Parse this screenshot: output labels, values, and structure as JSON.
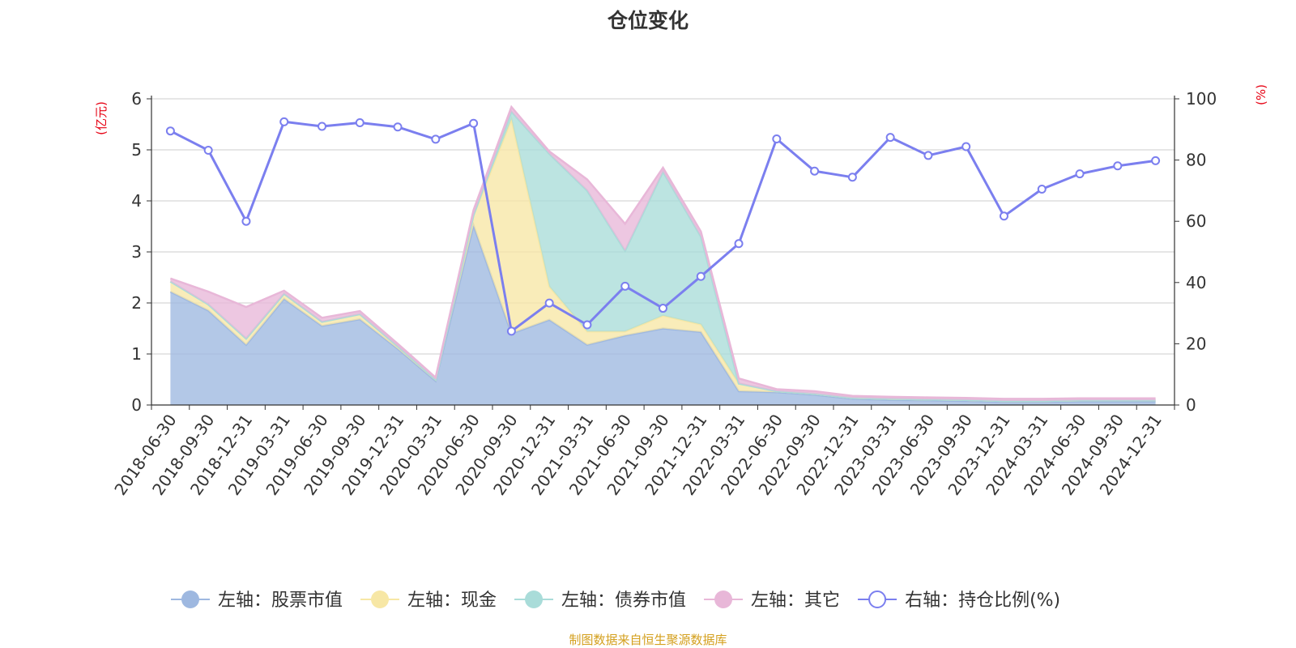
{
  "chart_data": {
    "type": "area",
    "title": "仓位变化",
    "left_axis_unit": "(亿元)",
    "right_axis_unit": "(%)",
    "left_ylim": [
      0,
      6
    ],
    "left_ticks": [
      "0",
      "1",
      "2",
      "3",
      "4",
      "5",
      "6"
    ],
    "right_ylim": [
      0,
      100
    ],
    "right_ticks": [
      "0",
      "20",
      "40",
      "60",
      "80",
      "100"
    ],
    "grid": true,
    "legend_position": "bottom-center",
    "categories": [
      "2018-06-30",
      "2018-09-30",
      "2018-12-31",
      "2019-03-31",
      "2019-06-30",
      "2019-09-30",
      "2019-12-31",
      "2020-03-31",
      "2020-06-30",
      "2020-09-30",
      "2020-12-31",
      "2021-03-31",
      "2021-06-30",
      "2021-09-30",
      "2021-12-31",
      "2022-03-31",
      "2022-06-30",
      "2022-09-30",
      "2022-12-31",
      "2023-03-31",
      "2023-06-30",
      "2023-09-30",
      "2023-12-31",
      "2024-03-31",
      "2024-06-30",
      "2024-09-30",
      "2024-12-31"
    ],
    "stacked_series": [
      {
        "name": "左轴：股票市值",
        "axis": "left",
        "color": "#9eb8e0",
        "values": [
          2.22,
          1.85,
          1.18,
          2.08,
          1.55,
          1.68,
          1.1,
          0.47,
          3.52,
          1.4,
          1.67,
          1.18,
          1.36,
          1.5,
          1.43,
          0.27,
          0.25,
          0.2,
          0.12,
          0.1,
          0.09,
          0.08,
          0.06,
          0.06,
          0.07,
          0.07,
          0.07
        ]
      },
      {
        "name": "左轴：现金",
        "axis": "left",
        "color": "#f7e7a5",
        "values": [
          0.2,
          0.12,
          0.12,
          0.1,
          0.08,
          0.1,
          0.05,
          0.03,
          0.2,
          4.2,
          0.65,
          0.26,
          0.08,
          0.25,
          0.15,
          0.15,
          0.02,
          0.02,
          0.02,
          0.02,
          0.02,
          0.02,
          0.02,
          0.02,
          0.02,
          0.02,
          0.02
        ]
      },
      {
        "name": "左轴：债券市值",
        "axis": "left",
        "color": "#a9dcd9",
        "values": [
          0,
          0,
          0,
          0,
          0,
          0,
          0,
          0,
          0,
          0.15,
          2.6,
          2.76,
          1.58,
          2.82,
          1.72,
          0,
          0,
          0,
          0,
          0,
          0,
          0,
          0,
          0,
          0,
          0,
          0
        ]
      },
      {
        "name": "左轴：其它",
        "axis": "left",
        "color": "#e8b7d8",
        "values": [
          0.06,
          0.25,
          0.62,
          0.06,
          0.08,
          0.06,
          0.05,
          0.04,
          0.1,
          0.09,
          0.05,
          0.22,
          0.53,
          0.08,
          0.1,
          0.1,
          0.04,
          0.05,
          0.04,
          0.04,
          0.04,
          0.04,
          0.04,
          0.04,
          0.04,
          0.04,
          0.04
        ]
      }
    ],
    "line_series": {
      "name": "右轴：持仓比例(%)",
      "axis": "right",
      "color": "#7b7fef",
      "values": [
        89.5,
        83.2,
        60.0,
        92.5,
        91.0,
        92.2,
        90.8,
        86.8,
        92.0,
        24.1,
        33.3,
        26.2,
        38.8,
        31.6,
        42.0,
        52.7,
        86.9,
        76.4,
        74.4,
        87.4,
        81.5,
        84.4,
        61.7,
        70.5,
        75.5,
        78.1,
        79.8
      ]
    },
    "legend": [
      {
        "label": "左轴：股票市值",
        "color": "#9eb8e0",
        "marker": "filled-circle"
      },
      {
        "label": "左轴：现金",
        "color": "#f7e7a5",
        "marker": "filled-circle"
      },
      {
        "label": "左轴：债券市值",
        "color": "#a9dcd9",
        "marker": "filled-circle"
      },
      {
        "label": "左轴：其它",
        "color": "#e8b7d8",
        "marker": "filled-circle"
      },
      {
        "label": "右轴：持仓比例(%)",
        "color": "#7b7fef",
        "marker": "hollow-circle"
      }
    ]
  },
  "source_note": "制图数据来自恒生聚源数据库"
}
